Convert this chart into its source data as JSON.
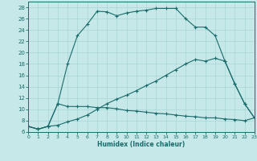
{
  "xlabel": "Humidex (Indice chaleur)",
  "bg_color": "#c6e8e8",
  "grid_color": "#a8d4d4",
  "line_color": "#1a6b6b",
  "xlim": [
    0,
    23
  ],
  "ylim": [
    6,
    29
  ],
  "yticks": [
    6,
    8,
    10,
    12,
    14,
    16,
    18,
    20,
    22,
    24,
    26,
    28
  ],
  "xticks": [
    0,
    1,
    2,
    3,
    4,
    5,
    6,
    7,
    8,
    9,
    10,
    11,
    12,
    13,
    14,
    15,
    16,
    17,
    18,
    19,
    20,
    21,
    22,
    23
  ],
  "curve1_x": [
    0,
    1,
    2,
    3,
    4,
    5,
    6,
    7,
    8,
    9,
    10,
    11,
    12,
    13,
    14,
    15,
    16,
    17,
    18,
    19,
    20,
    21,
    22,
    23
  ],
  "curve1_y": [
    7.0,
    6.5,
    7.0,
    11.0,
    18.0,
    23.0,
    25.0,
    27.3,
    27.2,
    26.5,
    27.0,
    27.3,
    27.5,
    27.8,
    27.8,
    27.8,
    26.0,
    24.5,
    24.5,
    23.0,
    18.5,
    14.5,
    11.0,
    8.5
  ],
  "curve2_x": [
    0,
    1,
    2,
    3,
    4,
    5,
    6,
    7,
    8,
    9,
    10,
    11,
    12,
    13,
    14,
    15,
    16,
    17,
    18,
    19,
    20,
    21,
    22,
    23
  ],
  "curve2_y": [
    7.0,
    6.5,
    7.0,
    11.0,
    10.5,
    10.5,
    10.5,
    10.3,
    10.3,
    10.1,
    9.8,
    9.7,
    9.5,
    9.3,
    9.2,
    9.0,
    8.8,
    8.7,
    8.5,
    8.5,
    8.3,
    8.2,
    8.0,
    8.5
  ],
  "curve3_x": [
    0,
    1,
    2,
    3,
    4,
    5,
    6,
    7,
    8,
    9,
    10,
    11,
    12,
    13,
    14,
    15,
    16,
    17,
    18,
    19,
    20,
    21,
    22,
    23
  ],
  "curve3_y": [
    7.0,
    6.5,
    7.0,
    7.2,
    7.8,
    8.3,
    9.0,
    10.0,
    11.0,
    11.8,
    12.5,
    13.3,
    14.2,
    15.0,
    16.0,
    17.0,
    18.0,
    18.8,
    18.5,
    19.0,
    18.5,
    14.5,
    11.0,
    8.5
  ]
}
